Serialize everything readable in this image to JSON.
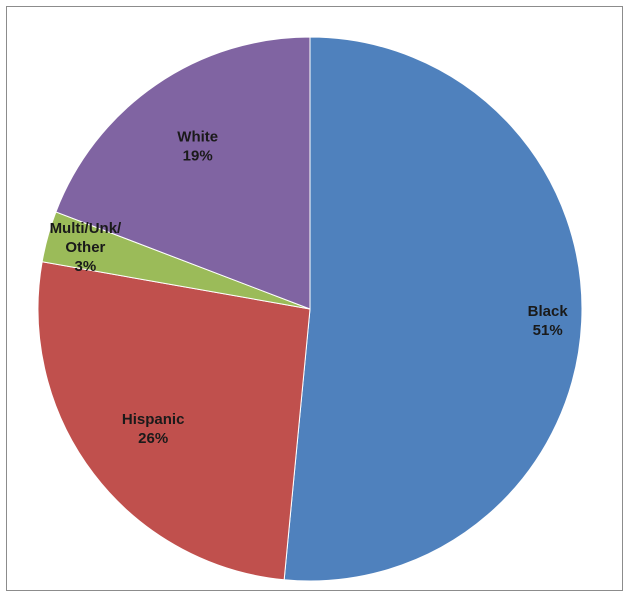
{
  "chart_data": {
    "type": "pie",
    "title": "",
    "start_angle_deg": 0,
    "direction": "clockwise",
    "legend": "none",
    "slices": [
      {
        "label": "Black",
        "value": 51,
        "display": "51%",
        "color": "#4F81BD"
      },
      {
        "label": "Hispanic",
        "value": 26,
        "display": "26%",
        "color": "#C0504D"
      },
      {
        "label": "Multi/Unk/ Other",
        "lines": [
          "Multi/Unk/",
          "Other"
        ],
        "value": 3,
        "display": "3%",
        "color": "#9BBB59"
      },
      {
        "label": "White",
        "value": 19,
        "display": "19%",
        "color": "#8064A2"
      }
    ]
  }
}
